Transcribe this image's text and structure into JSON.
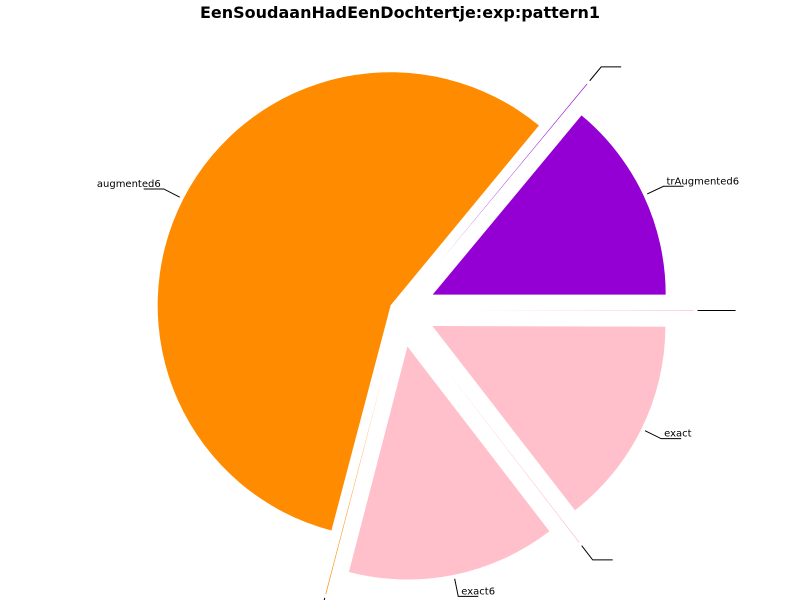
{
  "chart_data": {
    "type": "pie",
    "title": "EenSoudaanHadEenDochtertje:exp:pattern1",
    "start_angle_deg": 0,
    "slices": [
      {
        "label": "trAugmented6",
        "value": 14,
        "color": "#9400d3",
        "explode": 0.155
      },
      {
        "label": "",
        "value": 0.05,
        "color": "#9400d3",
        "explode": 0.26
      },
      {
        "label": "augmented6",
        "value": 57,
        "color": "#ff8c00",
        "explode": 0.045
      },
      {
        "label": "",
        "value": 0.05,
        "color": "#ff8c00",
        "explode": 0.26
      },
      {
        "label": "exact6",
        "value": 14.5,
        "color": "#ffc0cb",
        "explode": 0.16
      },
      {
        "label": "",
        "value": 0.05,
        "color": "#ffc0cb",
        "explode": 0.26
      },
      {
        "label": "exact",
        "value": 14.5,
        "color": "#ffc0cb",
        "explode": 0.155
      },
      {
        "label": "",
        "value": 0.05,
        "color": "#ffc0cb",
        "explode": 0.26
      }
    ]
  }
}
